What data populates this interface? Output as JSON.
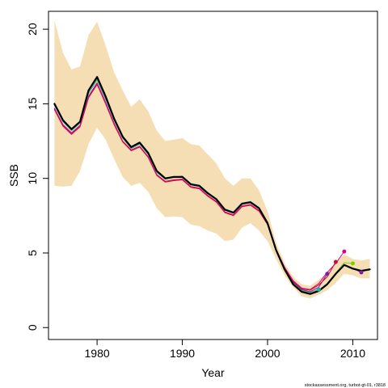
{
  "chart_data": {
    "type": "line",
    "xlabel": "Year",
    "ylabel": "SSB",
    "xlim": [
      1974.3,
      2012.9
    ],
    "ylim": [
      -0.8,
      21.2
    ],
    "x_ticks": [
      1980,
      1990,
      2000,
      2010
    ],
    "y_ticks": [
      0,
      5,
      10,
      15,
      20
    ],
    "grid": false,
    "legend": "none",
    "credit": "stockassessment.org, turbot-gt-01, r3818",
    "colors": {
      "band": "#f5deb3",
      "main": "#000000",
      "retro_teal": "#20b2aa",
      "retro_magenta": "#e0007f",
      "retro_crimson": "#c8102e",
      "retro_purple": "#7b1fa2",
      "retro_green": "#7ccd00",
      "retro_cyan": "#00bcd4"
    },
    "band": {
      "x": [
        1975,
        1976,
        1977,
        1978,
        1979,
        1980,
        1981,
        1982,
        1983,
        1984,
        1985,
        1986,
        1987,
        1988,
        1989,
        1990,
        1991,
        1992,
        1993,
        1994,
        1995,
        1996,
        1997,
        1998,
        1999,
        2000,
        2001,
        2002,
        2003,
        2004,
        2005,
        2006,
        2007,
        2008,
        2009,
        2010,
        2011,
        2012
      ],
      "lower": [
        9.5,
        9.45,
        9.5,
        10.5,
        12.3,
        13.4,
        12.6,
        11.3,
        10.1,
        9.5,
        9.7,
        9.1,
        8.0,
        7.4,
        7.45,
        7.4,
        6.9,
        6.8,
        6.5,
        6.3,
        5.8,
        5.9,
        6.7,
        7.0,
        6.5,
        5.8,
        4.6,
        3.5,
        2.7,
        2.1,
        1.95,
        2.2,
        2.5,
        3.0,
        3.6,
        3.5,
        3.3,
        3.3
      ],
      "upper": [
        20.6,
        18.4,
        17.3,
        17.5,
        19.6,
        20.5,
        18.9,
        17.1,
        15.9,
        14.8,
        15.3,
        14.5,
        13.2,
        12.5,
        12.6,
        12.7,
        12.3,
        12.2,
        11.6,
        11.0,
        10.0,
        9.5,
        10.0,
        10.0,
        9.2,
        7.8,
        5.7,
        4.3,
        3.4,
        2.9,
        2.8,
        3.2,
        3.7,
        4.4,
        4.9,
        4.6,
        4.5,
        4.6
      ]
    },
    "series": [
      {
        "role": "main",
        "x": [
          1975,
          1976,
          1977,
          1978,
          1979,
          1980,
          1981,
          1982,
          1983,
          1984,
          1985,
          1986,
          1987,
          1988,
          1989,
          1990,
          1991,
          1992,
          1993,
          1994,
          1995,
          1996,
          1997,
          1998,
          1999,
          2000,
          2001,
          2002,
          2003,
          2004,
          2005,
          2006,
          2007,
          2008,
          2009,
          2010,
          2011,
          2012
        ],
        "values": [
          15.0,
          13.9,
          13.3,
          13.8,
          15.9,
          16.8,
          15.5,
          14.0,
          12.8,
          12.1,
          12.4,
          11.7,
          10.5,
          10.0,
          10.1,
          10.1,
          9.6,
          9.5,
          9.0,
          8.6,
          7.9,
          7.7,
          8.3,
          8.4,
          8.0,
          7.0,
          5.2,
          3.9,
          2.9,
          2.4,
          2.25,
          2.45,
          2.9,
          3.6,
          4.2,
          3.95,
          3.8,
          3.9
        ],
        "color": "main",
        "width": 2.2
      },
      {
        "role": "retro",
        "x": [
          1975,
          1976,
          1977,
          1978,
          1979,
          1980,
          1981,
          1982,
          1983,
          1984,
          1985,
          1986,
          1987,
          1988,
          1989,
          1990,
          1991,
          1992,
          1993,
          1994,
          1995,
          1996,
          1997,
          1998,
          1999,
          2000,
          2001,
          2002,
          2003,
          2004,
          2005,
          2006
        ],
        "values": [
          14.9,
          13.8,
          13.2,
          13.7,
          15.7,
          16.6,
          15.3,
          13.9,
          12.7,
          12.0,
          12.3,
          11.6,
          10.4,
          9.95,
          10.05,
          10.15,
          9.65,
          9.55,
          9.05,
          8.65,
          7.95,
          7.75,
          8.35,
          8.45,
          8.05,
          7.05,
          5.25,
          3.95,
          3.0,
          2.5,
          2.35,
          2.55
        ],
        "color": "retro_teal",
        "width": 1.0,
        "end_point": true
      },
      {
        "role": "retro",
        "x": [
          1975,
          1976,
          1977,
          1978,
          1979,
          1980,
          1981,
          1982,
          1983,
          1984,
          1985,
          1986,
          1987,
          1988,
          1989,
          1990,
          1991,
          1992,
          1993,
          1994,
          1995,
          1996,
          1997,
          1998,
          1999,
          2000,
          2001,
          2002,
          2003,
          2004,
          2005,
          2006,
          2007
        ],
        "values": [
          14.7,
          13.6,
          13.05,
          13.55,
          15.5,
          16.4,
          15.1,
          13.7,
          12.5,
          11.9,
          12.15,
          11.45,
          10.25,
          9.8,
          9.9,
          9.95,
          9.45,
          9.35,
          8.85,
          8.45,
          7.75,
          7.55,
          8.15,
          8.25,
          7.85,
          6.95,
          5.2,
          3.95,
          3.05,
          2.55,
          2.4,
          2.7,
          3.6
        ],
        "color": "retro_purple",
        "width": 1.0,
        "end_point": true
      },
      {
        "role": "retro",
        "x": [
          1975,
          1976,
          1977,
          1978,
          1979,
          1980,
          1981,
          1982,
          1983,
          1984,
          1985,
          1986,
          1987,
          1988,
          1989,
          1990,
          1991,
          1992,
          1993,
          1994,
          1995,
          1996,
          1997,
          1998,
          1999,
          2000,
          2001,
          2002,
          2003,
          2004,
          2005,
          2006,
          2007,
          2008
        ],
        "values": [
          14.6,
          13.5,
          12.95,
          13.45,
          15.4,
          16.3,
          15.0,
          13.6,
          12.45,
          11.85,
          12.1,
          11.4,
          10.2,
          9.75,
          9.85,
          9.9,
          9.4,
          9.3,
          8.8,
          8.4,
          7.7,
          7.5,
          8.1,
          8.2,
          7.8,
          6.9,
          5.2,
          4.0,
          3.1,
          2.6,
          2.5,
          2.85,
          3.4,
          4.4
        ],
        "color": "retro_crimson",
        "width": 1.0,
        "end_point": true
      },
      {
        "role": "retro",
        "x": [
          1975,
          1976,
          1977,
          1978,
          1979,
          1980,
          1981,
          1982,
          1983,
          1984,
          1985,
          1986,
          1987,
          1988,
          1989,
          1990,
          1991,
          1992,
          1993,
          1994,
          1995,
          1996,
          1997,
          1998,
          1999,
          2000,
          2001,
          2002,
          2003,
          2004,
          2005,
          2006,
          2007,
          2008,
          2009
        ],
        "values": [
          14.65,
          13.55,
          13.0,
          13.5,
          15.45,
          16.35,
          15.05,
          13.65,
          12.5,
          11.9,
          12.15,
          11.45,
          10.25,
          9.8,
          9.9,
          9.95,
          9.45,
          9.35,
          8.85,
          8.45,
          7.75,
          7.55,
          8.15,
          8.25,
          7.85,
          6.95,
          5.25,
          4.05,
          3.15,
          2.65,
          2.55,
          2.95,
          3.7,
          4.3,
          5.1
        ],
        "color": "retro_magenta",
        "width": 1.0,
        "end_point": true
      },
      {
        "role": "retro",
        "x": [
          1975,
          1976,
          1977,
          1978,
          1979,
          1980,
          1981,
          1982,
          1983,
          1984,
          1985,
          1986,
          1987,
          1988,
          1989,
          1990,
          1991,
          1992,
          1993,
          1994,
          1995,
          1996,
          1997,
          1998,
          1999,
          2000,
          2001,
          2002,
          2003,
          2004,
          2005,
          2006,
          2007,
          2008,
          2009,
          2010
        ],
        "values": [
          14.95,
          13.85,
          13.25,
          13.75,
          15.8,
          16.7,
          15.4,
          13.95,
          12.75,
          12.05,
          12.35,
          11.65,
          10.45,
          9.95,
          10.05,
          10.1,
          9.6,
          9.5,
          9.0,
          8.6,
          7.9,
          7.7,
          8.3,
          8.4,
          8.0,
          7.0,
          5.2,
          3.9,
          2.95,
          2.45,
          2.3,
          2.5,
          2.95,
          3.65,
          4.35,
          4.3
        ],
        "color": "retro_green",
        "width": 1.0,
        "end_point": true
      },
      {
        "role": "retro",
        "x": [
          2010,
          2011
        ],
        "values": [
          3.95,
          3.7
        ],
        "color": "retro_purple",
        "width": 1.0,
        "end_point": true
      }
    ]
  }
}
